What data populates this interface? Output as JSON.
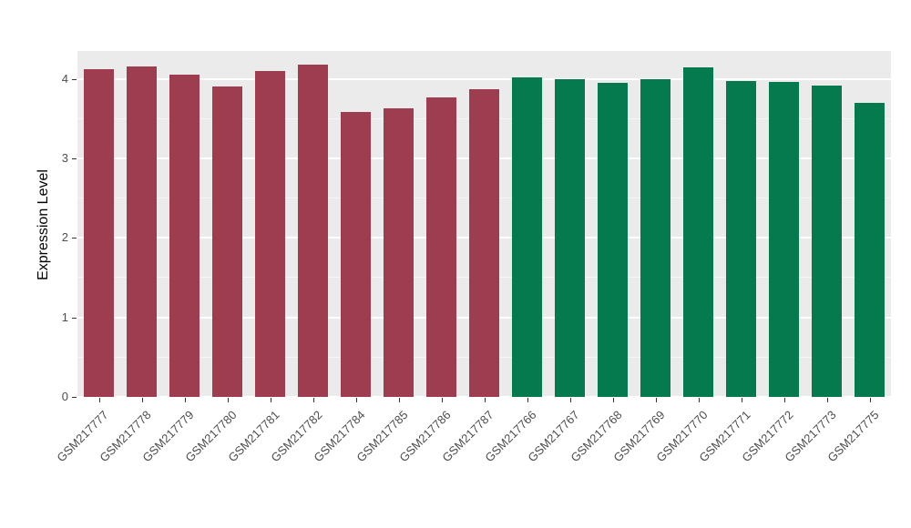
{
  "chart_data": {
    "type": "bar",
    "title": "",
    "xlabel": "",
    "ylabel": "Expression Level",
    "ylim": [
      0,
      4.35
    ],
    "yticks": [
      0,
      1,
      2,
      3,
      4
    ],
    "minor_gridline_step": 0.5,
    "grid": "on",
    "legend": "none",
    "panel_background": "#ebebeb",
    "categories": [
      "GSM217777",
      "GSM217778",
      "GSM217779",
      "GSM217780",
      "GSM217781",
      "GSM217782",
      "GSM217784",
      "GSM217785",
      "GSM217786",
      "GSM217787",
      "GSM217766",
      "GSM217767",
      "GSM217768",
      "GSM217769",
      "GSM217770",
      "GSM217771",
      "GSM217772",
      "GSM217773",
      "GSM217775"
    ],
    "values": [
      4.12,
      4.15,
      4.05,
      3.9,
      4.1,
      4.18,
      3.58,
      3.63,
      3.77,
      3.87,
      4.02,
      4.0,
      3.95,
      4.0,
      4.14,
      3.97,
      3.96,
      3.91,
      3.7
    ],
    "bar_colors": [
      "#9e3d50",
      "#9e3d50",
      "#9e3d50",
      "#9e3d50",
      "#9e3d50",
      "#9e3d50",
      "#9e3d50",
      "#9e3d50",
      "#9e3d50",
      "#9e3d50",
      "#067a4f",
      "#067a4f",
      "#067a4f",
      "#067a4f",
      "#067a4f",
      "#067a4f",
      "#067a4f",
      "#067a4f",
      "#067a4f"
    ],
    "group_colors": {
      "group1": "#9e3d50",
      "group2": "#067a4f"
    }
  }
}
